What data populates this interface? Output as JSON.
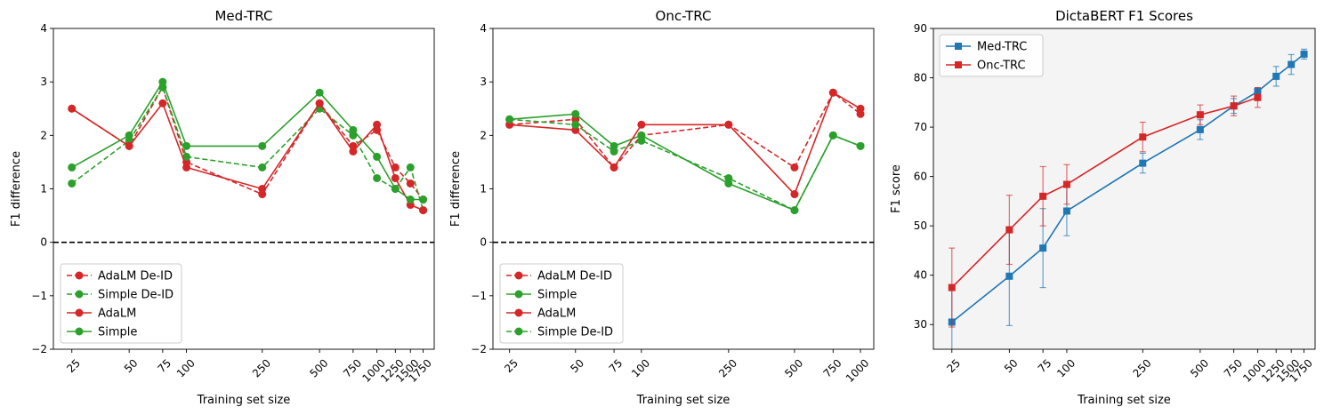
{
  "chart_data": [
    {
      "type": "line",
      "title": "Med-TRC",
      "xlabel": "Training set size",
      "ylabel": "F1 difference",
      "x_scale": "log",
      "xticks": [
        25,
        50,
        75,
        100,
        250,
        500,
        750,
        1000,
        1250,
        1500,
        1750
      ],
      "ylim": [
        -2,
        4
      ],
      "yticks": [
        -2,
        -1,
        0,
        1,
        2,
        3,
        4
      ],
      "reference_line": {
        "y": 0,
        "style": "dashed",
        "color": "#000000"
      },
      "legend_position": "lower-left",
      "series": [
        {
          "name": "AdaLM De-ID",
          "color": "#d62728",
          "dashed": true,
          "points": [
            [
              25,
              2.5
            ],
            [
              50,
              1.8
            ],
            [
              75,
              2.9
            ],
            [
              100,
              1.5
            ],
            [
              250,
              0.9
            ],
            [
              500,
              2.6
            ],
            [
              750,
              1.8
            ],
            [
              1000,
              2.1
            ],
            [
              1250,
              1.4
            ],
            [
              1500,
              1.1
            ],
            [
              1750,
              0.8
            ]
          ]
        },
        {
          "name": "Simple De-ID",
          "color": "#2ca02c",
          "dashed": true,
          "points": [
            [
              25,
              1.1
            ],
            [
              50,
              1.9
            ],
            [
              75,
              2.9
            ],
            [
              100,
              1.6
            ],
            [
              250,
              1.4
            ],
            [
              500,
              2.5
            ],
            [
              750,
              2.0
            ],
            [
              1000,
              1.2
            ],
            [
              1250,
              1.0
            ],
            [
              1500,
              1.4
            ],
            [
              1750,
              0.6
            ]
          ]
        },
        {
          "name": "AdaLM",
          "color": "#d62728",
          "dashed": false,
          "points": [
            [
              25,
              2.5
            ],
            [
              50,
              1.8
            ],
            [
              75,
              2.6
            ],
            [
              100,
              1.4
            ],
            [
              250,
              1.0
            ],
            [
              500,
              2.6
            ],
            [
              750,
              1.7
            ],
            [
              1000,
              2.2
            ],
            [
              1250,
              1.2
            ],
            [
              1500,
              0.7
            ],
            [
              1750,
              0.6
            ]
          ]
        },
        {
          "name": "Simple",
          "color": "#2ca02c",
          "dashed": false,
          "points": [
            [
              25,
              1.4
            ],
            [
              50,
              2.0
            ],
            [
              75,
              3.0
            ],
            [
              100,
              1.8
            ],
            [
              250,
              1.8
            ],
            [
              500,
              2.8
            ],
            [
              750,
              2.1
            ],
            [
              1000,
              1.6
            ],
            [
              1250,
              1.0
            ],
            [
              1500,
              0.8
            ],
            [
              1750,
              0.8
            ]
          ]
        }
      ]
    },
    {
      "type": "line",
      "title": "Onc-TRC",
      "xlabel": "Training set size",
      "ylabel": "F1 difference",
      "x_scale": "log",
      "xticks": [
        25,
        50,
        75,
        100,
        250,
        500,
        750,
        1000
      ],
      "ylim": [
        -2,
        4
      ],
      "yticks": [
        -2,
        -1,
        0,
        1,
        2,
        3,
        4
      ],
      "reference_line": {
        "y": 0,
        "style": "dashed",
        "color": "#000000"
      },
      "legend_position": "lower-left",
      "series": [
        {
          "name": "AdaLM De-ID",
          "color": "#d62728",
          "dashed": true,
          "points": [
            [
              25,
              2.2
            ],
            [
              50,
              2.3
            ],
            [
              75,
              1.4
            ],
            [
              100,
              2.0
            ],
            [
              250,
              2.2
            ],
            [
              500,
              1.4
            ],
            [
              750,
              2.8
            ],
            [
              1000,
              2.4
            ]
          ]
        },
        {
          "name": "Simple",
          "color": "#2ca02c",
          "dashed": false,
          "points": [
            [
              25,
              2.3
            ],
            [
              50,
              2.4
            ],
            [
              75,
              1.8
            ],
            [
              100,
              2.0
            ],
            [
              250,
              1.1
            ],
            [
              500,
              0.6
            ],
            [
              750,
              2.0
            ],
            [
              1000,
              1.8
            ]
          ]
        },
        {
          "name": "AdaLM",
          "color": "#d62728",
          "dashed": false,
          "points": [
            [
              25,
              2.2
            ],
            [
              50,
              2.1
            ],
            [
              75,
              1.4
            ],
            [
              100,
              2.2
            ],
            [
              250,
              2.2
            ],
            [
              500,
              0.9
            ],
            [
              750,
              2.8
            ],
            [
              1000,
              2.5
            ]
          ]
        },
        {
          "name": "Simple De-ID",
          "color": "#2ca02c",
          "dashed": true,
          "points": [
            [
              25,
              2.3
            ],
            [
              50,
              2.2
            ],
            [
              75,
              1.7
            ],
            [
              100,
              1.9
            ],
            [
              250,
              1.2
            ],
            [
              500,
              0.6
            ],
            [
              750,
              2.0
            ],
            [
              1000,
              1.8
            ]
          ]
        }
      ]
    },
    {
      "type": "line",
      "title": "DictaBERT F1 Scores",
      "xlabel": "Training set size",
      "ylabel": "F1 score",
      "x_scale": "log",
      "xticks": [
        25,
        50,
        75,
        100,
        250,
        500,
        750,
        1000,
        1250,
        1500,
        1750
      ],
      "ylim": [
        25,
        90
      ],
      "yticks": [
        30,
        40,
        50,
        60,
        70,
        80,
        90
      ],
      "plot_background": "#f4f4f4",
      "legend_position": "upper-left",
      "series": [
        {
          "name": "Med-TRC",
          "color": "#1f77b4",
          "marker": "square",
          "points": [
            [
              25,
              30.5
            ],
            [
              50,
              39.8
            ],
            [
              75,
              45.5
            ],
            [
              100,
              53.0
            ],
            [
              250,
              62.7
            ],
            [
              500,
              69.5
            ],
            [
              750,
              74.3
            ],
            [
              1000,
              77.2
            ],
            [
              1250,
              80.3
            ],
            [
              1500,
              82.7
            ],
            [
              1750,
              84.8
            ]
          ],
          "err": [
            7,
            10,
            8,
            5,
            2,
            2,
            1.5,
            0.8,
            2,
            2,
            1
          ]
        },
        {
          "name": "Onc-TRC",
          "color": "#d62728",
          "marker": "square",
          "points": [
            [
              25,
              37.5
            ],
            [
              50,
              49.2
            ],
            [
              75,
              56.0
            ],
            [
              100,
              58.4
            ],
            [
              250,
              68.0
            ],
            [
              500,
              72.5
            ],
            [
              750,
              74.3
            ],
            [
              1000,
              76.0
            ]
          ],
          "err": [
            8,
            7,
            6,
            4,
            3,
            2,
            2,
            2
          ]
        }
      ]
    }
  ]
}
